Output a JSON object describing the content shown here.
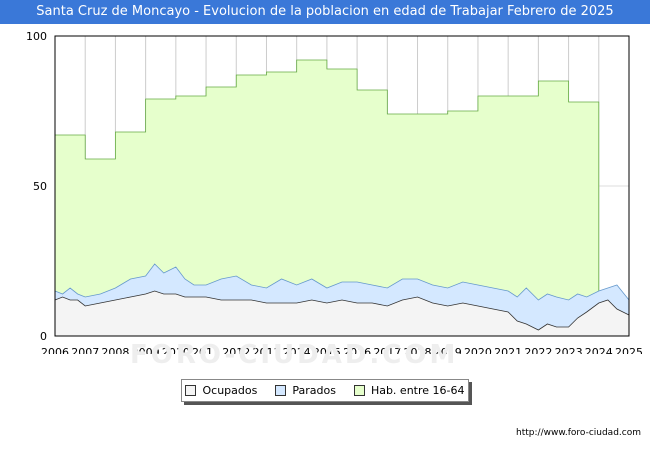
{
  "chart_data": {
    "type": "area",
    "title": "Santa Cruz de Moncayo - Evolucion de la poblacion en edad de Trabajar Febrero de 2025",
    "xlabel": "",
    "ylabel": "",
    "xlim": [
      2006,
      2025
    ],
    "ylim": [
      0,
      100
    ],
    "y_ticks": [
      0,
      50,
      100
    ],
    "x_ticks": [
      2006,
      2007,
      2008,
      2009,
      2010,
      2011,
      2012,
      2013,
      2014,
      2015,
      2016,
      2017,
      2018,
      2019,
      2020,
      2021,
      2022,
      2023,
      2024,
      2025
    ],
    "x_tick_labels": [
      "2006",
      "2007",
      "2008",
      "2009",
      "2010",
      "2011",
      "2012",
      "2013",
      "2014",
      "2015",
      "2016",
      "2017",
      "2018",
      "2019",
      "2020",
      "2021",
      "2022",
      "2023",
      "2024",
      "2025"
    ],
    "y_tick_labels": [
      "0",
      "50",
      "100"
    ],
    "grid": true,
    "legend_position": "bottom-center",
    "series": [
      {
        "name": "Hab. entre 16-64",
        "color": "#e6ffcc",
        "line_color": "#66aa44",
        "annual_values": [
          67,
          59,
          68,
          79,
          80,
          83,
          87,
          88,
          92,
          89,
          82,
          74,
          74,
          75,
          80,
          80,
          85,
          78
        ]
      },
      {
        "name": "Parados",
        "color": "#d4e8ff",
        "line_color": "#6699cc",
        "x": [
          2006.0,
          2006.25,
          2006.5,
          2006.75,
          2007.0,
          2007.5,
          2008.0,
          2008.5,
          2009.0,
          2009.3,
          2009.6,
          2010.0,
          2010.3,
          2010.6,
          2011.0,
          2011.5,
          2012.0,
          2012.5,
          2013.0,
          2013.5,
          2014.0,
          2014.5,
          2015.0,
          2015.5,
          2016.0,
          2016.5,
          2017.0,
          2017.5,
          2018.0,
          2018.5,
          2019.0,
          2019.5,
          2020.0,
          2020.5,
          2021.0,
          2021.3,
          2021.6,
          2022.0,
          2022.3,
          2022.6,
          2023.0,
          2023.3,
          2023.6,
          2024.0,
          2024.3,
          2024.6,
          2025.0
        ],
        "values": [
          15,
          14,
          16,
          14,
          13,
          14,
          16,
          19,
          20,
          24,
          21,
          23,
          19,
          17,
          17,
          19,
          20,
          17,
          16,
          19,
          17,
          19,
          16,
          18,
          18,
          17,
          16,
          19,
          19,
          17,
          16,
          18,
          17,
          16,
          15,
          13,
          16,
          12,
          14,
          13,
          12,
          14,
          13,
          15,
          16,
          17,
          12
        ]
      },
      {
        "name": "Ocupados",
        "color": "#f4f4f4",
        "line_color": "#333333",
        "x": [
          2006.0,
          2006.25,
          2006.5,
          2006.75,
          2007.0,
          2007.5,
          2008.0,
          2008.5,
          2009.0,
          2009.3,
          2009.6,
          2010.0,
          2010.3,
          2010.6,
          2011.0,
          2011.5,
          2012.0,
          2012.5,
          2013.0,
          2013.5,
          2014.0,
          2014.5,
          2015.0,
          2015.5,
          2016.0,
          2016.5,
          2017.0,
          2017.5,
          2018.0,
          2018.5,
          2019.0,
          2019.5,
          2020.0,
          2020.5,
          2021.0,
          2021.3,
          2021.6,
          2022.0,
          2022.3,
          2022.6,
          2023.0,
          2023.3,
          2023.6,
          2024.0,
          2024.3,
          2024.6,
          2025.0
        ],
        "values": [
          12,
          13,
          12,
          12,
          10,
          11,
          12,
          13,
          14,
          15,
          14,
          14,
          13,
          13,
          13,
          12,
          12,
          12,
          11,
          11,
          11,
          12,
          11,
          12,
          11,
          11,
          10,
          12,
          13,
          11,
          10,
          11,
          10,
          9,
          8,
          5,
          4,
          2,
          4,
          3,
          3,
          6,
          8,
          11,
          12,
          9,
          7
        ]
      }
    ]
  },
  "legend": {
    "items": [
      {
        "label": "Ocupados",
        "color": "#f4f4f4"
      },
      {
        "label": "Parados",
        "color": "#d4e8ff"
      },
      {
        "label": "Hab. entre 16-64",
        "color": "#e6ffcc"
      }
    ]
  },
  "footer": {
    "source_url": "http://www.foro-ciudad.com"
  },
  "watermark_text": "FORO-CIUDAD.COM"
}
